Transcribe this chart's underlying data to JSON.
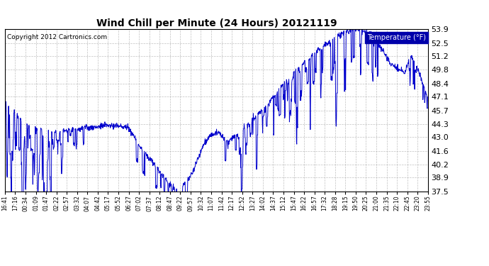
{
  "title": "Wind Chill per Minute (24 Hours) 20121119",
  "copyright": "Copyright 2012 Cartronics.com",
  "legend_label": "Temperature (°F)",
  "line_color": "#0000CC",
  "background_color": "#ffffff",
  "plot_bg_color": "#ffffff",
  "grid_color": "#b0b0b0",
  "ylim": [
    37.5,
    53.9
  ],
  "yticks": [
    37.5,
    38.9,
    40.2,
    41.6,
    43.0,
    44.3,
    45.7,
    47.1,
    48.4,
    49.8,
    51.2,
    52.5,
    53.9
  ],
  "xtick_labels": [
    "16:41",
    "17:16",
    "00:34",
    "01:09",
    "01:47",
    "02:22",
    "02:57",
    "03:32",
    "04:07",
    "04:42",
    "05:17",
    "05:52",
    "06:27",
    "07:02",
    "07:37",
    "08:12",
    "08:47",
    "09:22",
    "09:57",
    "10:32",
    "11:07",
    "11:42",
    "12:17",
    "12:52",
    "13:27",
    "14:02",
    "14:37",
    "15:12",
    "15:47",
    "16:22",
    "16:57",
    "17:32",
    "18:28",
    "19:15",
    "19:50",
    "20:25",
    "21:00",
    "21:35",
    "22:10",
    "22:45",
    "23:20",
    "23:55"
  ],
  "legend_box_color": "#0000AA",
  "legend_text_color": "#ffffff"
}
